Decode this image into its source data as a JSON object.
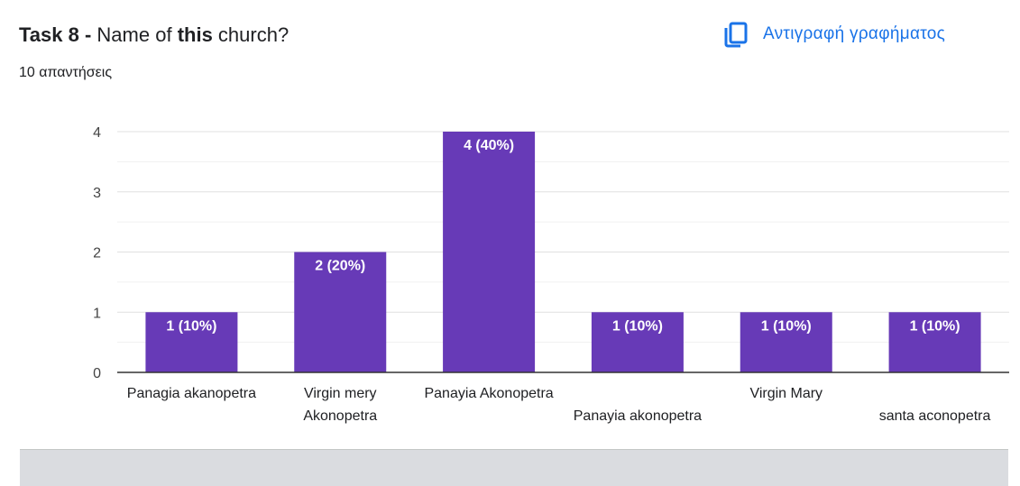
{
  "header": {
    "task_prefix": "Task 8 - ",
    "question_part1": "Name of ",
    "question_bold": "this",
    "question_part2": " church?",
    "responses": "10 απαντήσεις"
  },
  "copy_button": {
    "label": "Αντιγραφή γραφήματος",
    "icon": "copy-icon"
  },
  "colors": {
    "bar": "#673ab7",
    "accent": "#1a73e8",
    "grid": "#e8e8e8",
    "axis": "#333333"
  },
  "chart_data": {
    "type": "bar",
    "categories": [
      "Panagia akanopetra",
      "Virgin mery Akonopetra",
      "Panayia Akonopetra",
      "Panayia akonopetra",
      "Virgin Mary",
      "santa aconopetra"
    ],
    "category_label_lines": [
      [
        "Panagia akanopetra"
      ],
      [
        "Virgin mery",
        "Akonopetra"
      ],
      [
        "Panayia Akonopetra"
      ],
      [
        "",
        "Panayia akonopetra"
      ],
      [
        "Virgin Mary"
      ],
      [
        "",
        "santa aconopetra"
      ]
    ],
    "values": [
      1,
      2,
      4,
      1,
      1,
      1
    ],
    "data_labels": [
      "1 (10%)",
      "2 (20%)",
      "4 (40%)",
      "1 (10%)",
      "1 (10%)",
      "1 (10%)"
    ],
    "ylim": [
      0,
      4
    ],
    "yticks": [
      0,
      1,
      2,
      3,
      4
    ],
    "minor_grid_step": 0.5,
    "grid": true,
    "legend": "none"
  }
}
